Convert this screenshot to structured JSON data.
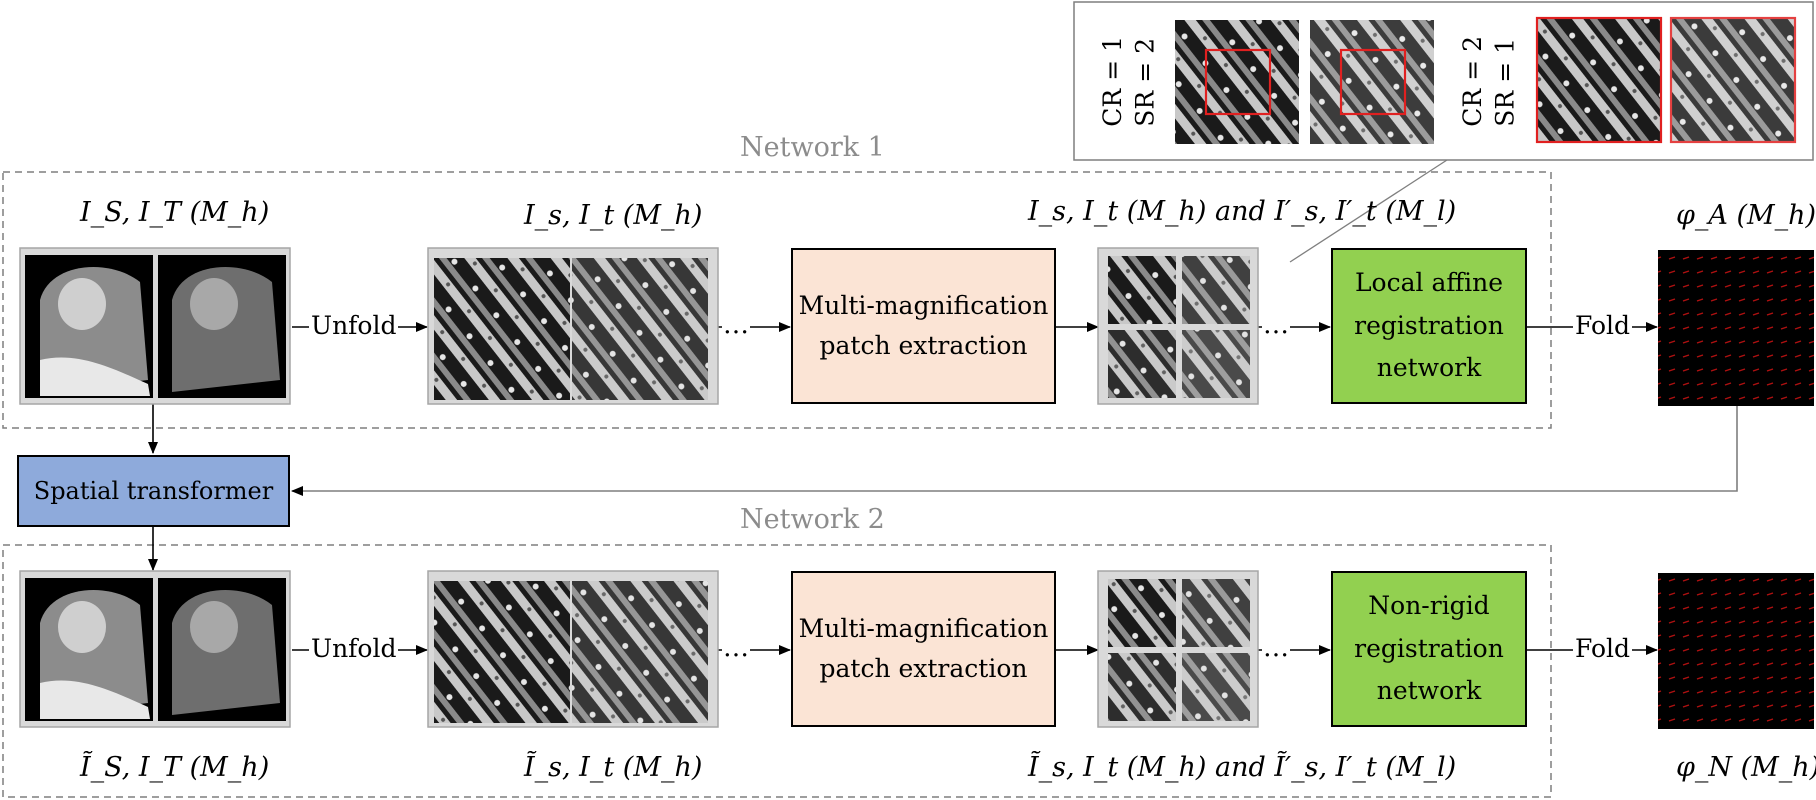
{
  "networks": {
    "net1_title": "Network 1",
    "net2_title": "Network 2"
  },
  "labels": {
    "r1_input": "I_S, I_T (M_h)",
    "r1_patches": "I_s, I_t (M_h)",
    "r1_multi": "I_s, I_t (M_h) and I′_s, I′_t (M_l)",
    "r1_field": "φ_A (M_h)",
    "r2_input": "Ĩ_S, I_T (M_h)",
    "r2_patches": "Ĩ_s, I_t (M_h)",
    "r2_multi": "Ĩ_s, I_t (M_h) and Ĩ′_s, I′_t (M_l)",
    "r2_field": "φ_N (M_h)"
  },
  "boxes": {
    "extract1": [
      "Multi-magnification",
      "patch extraction"
    ],
    "extract2": [
      "Multi-magnification",
      "patch extraction"
    ],
    "affine": [
      "Local affine",
      "registration",
      "network"
    ],
    "nonrigid": [
      "Non-rigid",
      "registration",
      "network"
    ],
    "stn": "Spatial transformer"
  },
  "edges": {
    "unfold": "Unfold",
    "fold": "Fold",
    "ellipsis": "…"
  },
  "inset": {
    "left_label": [
      "CR = 1",
      "SR = 2"
    ],
    "right_label": [
      "CR = 2",
      "SR = 1"
    ]
  },
  "colors": {
    "network_border": "#7f7f7f",
    "extraction_box": "#fbe4d5",
    "registration_box": "#92d050",
    "spatial_transformer": "#8eaadb",
    "patch_panel": "#d9d9d9",
    "highlight": "#e02020"
  }
}
